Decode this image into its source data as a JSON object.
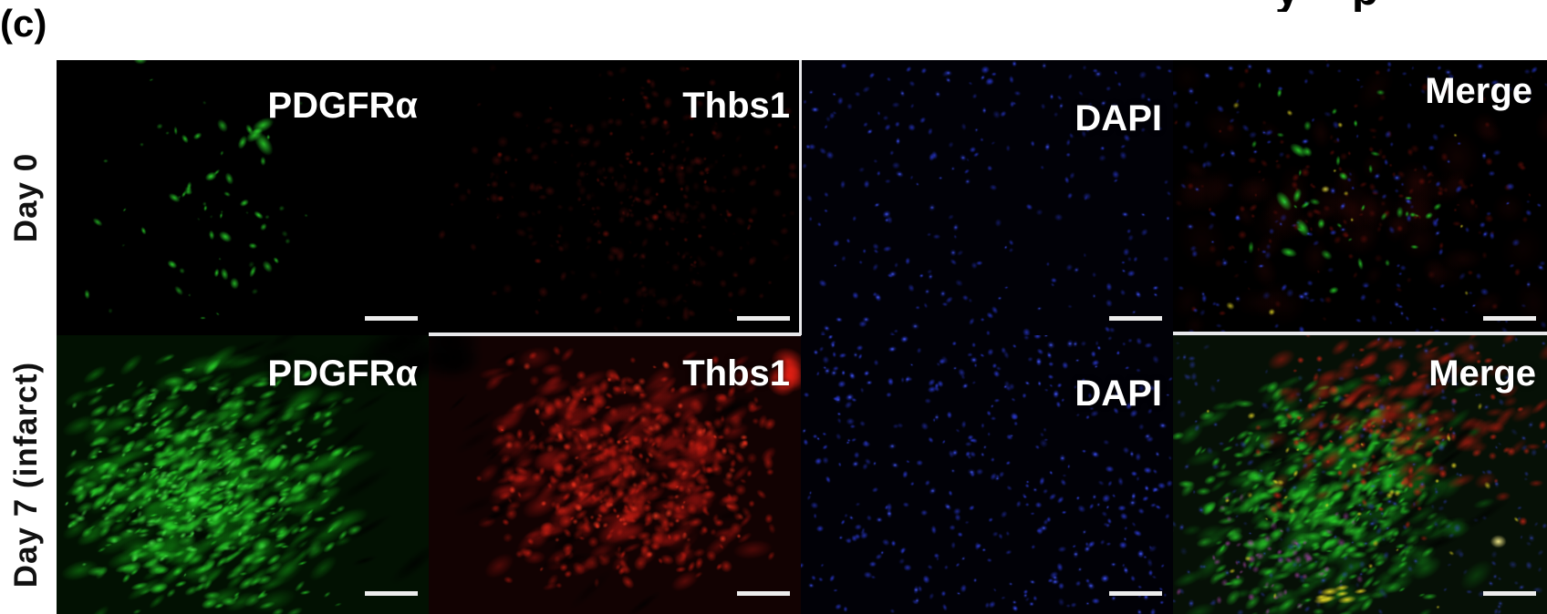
{
  "figure": {
    "panel_tag": "(c)",
    "cropped_top_text": "y p",
    "rows": [
      {
        "label": "Day 0",
        "panels": [
          {
            "label": "PDGFRα",
            "appearance": "sparse-green",
            "scale_bar": true
          },
          {
            "label": "Thbs1",
            "appearance": "dim-red",
            "scale_bar": true
          },
          {
            "label": "DAPI",
            "appearance": "nuclei-sparse",
            "scale_bar": true
          },
          {
            "label": "Merge",
            "appearance": "merge-day0",
            "scale_bar": true
          }
        ]
      },
      {
        "label": "Day 7 (infarct)",
        "panels": [
          {
            "label": "PDGFRα",
            "appearance": "dense-green",
            "scale_bar": true
          },
          {
            "label": "Thbs1",
            "appearance": "dense-red",
            "scale_bar": true
          },
          {
            "label": "DAPI",
            "appearance": "nuclei-dense",
            "scale_bar": true
          },
          {
            "label": "Merge",
            "appearance": "merge-day7",
            "scale_bar": true
          }
        ]
      }
    ],
    "colors": {
      "pdgfra_green": "#2ddd2d",
      "thbs1_red": "#c81d12",
      "dapi_blue": "#2a3ad8",
      "overlay_yellow": "#e8dc28",
      "scale_bar": "#ededed",
      "panel_background": "#000000",
      "figure_background": "#ffffff",
      "panel_label_text": "#ffffff",
      "row_label_text": "#111111"
    }
  }
}
